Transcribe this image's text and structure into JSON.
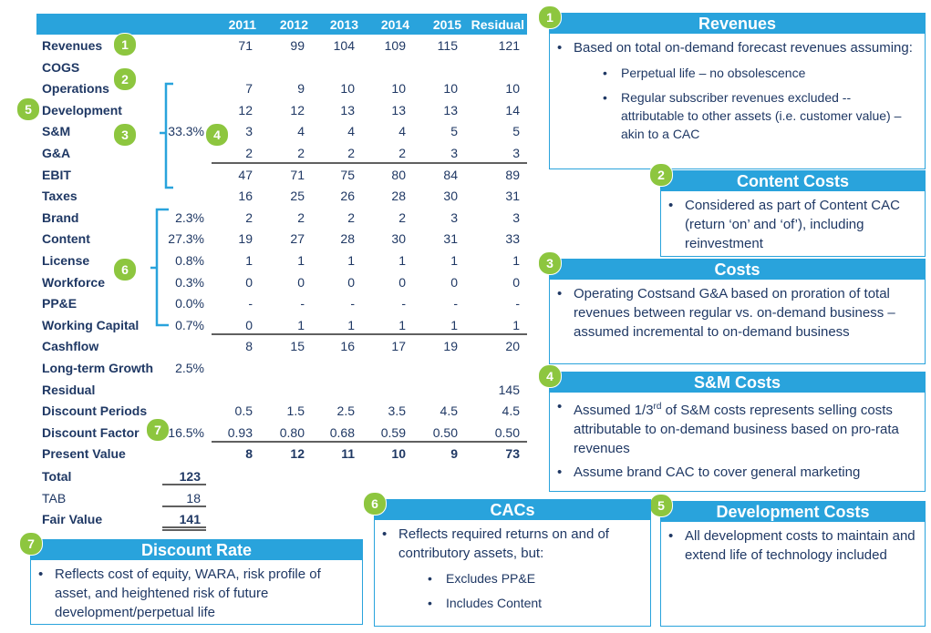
{
  "table": {
    "columns": [
      "2011",
      "2012",
      "2013",
      "2014",
      "2015",
      "Residual"
    ],
    "rows": [
      {
        "label": "Revenues",
        "values": [
          "71",
          "99",
          "104",
          "109",
          "115",
          "121"
        ]
      },
      {
        "label": "COGS"
      },
      {
        "label": "Operations",
        "values": [
          "7",
          "9",
          "10",
          "10",
          "10",
          "10"
        ]
      },
      {
        "label": "Development",
        "values": [
          "12",
          "12",
          "13",
          "13",
          "13",
          "14"
        ]
      },
      {
        "label": "S&M",
        "pct": "33.3%",
        "values": [
          "3",
          "4",
          "4",
          "4",
          "5",
          "5"
        ]
      },
      {
        "label": "G&A",
        "values": [
          "2",
          "2",
          "2",
          "2",
          "3",
          "3"
        ]
      },
      {
        "label": "EBIT",
        "values": [
          "47",
          "71",
          "75",
          "80",
          "84",
          "89"
        ]
      },
      {
        "label": "Taxes",
        "values": [
          "16",
          "25",
          "26",
          "28",
          "30",
          "31"
        ]
      },
      {
        "label": "Brand",
        "pct": "2.3%",
        "values": [
          "2",
          "2",
          "2",
          "2",
          "3",
          "3"
        ]
      },
      {
        "label": "Content",
        "pct": "27.3%",
        "values": [
          "19",
          "27",
          "28",
          "30",
          "31",
          "33"
        ]
      },
      {
        "label": "License",
        "pct": "0.8%",
        "values": [
          "1",
          "1",
          "1",
          "1",
          "1",
          "1"
        ]
      },
      {
        "label": "Workforce",
        "pct": "0.3%",
        "values": [
          "0",
          "0",
          "0",
          "0",
          "0",
          "0"
        ]
      },
      {
        "label": "PP&E",
        "pct": "0.0%",
        "values": [
          "-",
          "-",
          "-",
          "-",
          "-",
          "-"
        ]
      },
      {
        "label": "Working Capital",
        "pct": "0.7%",
        "values": [
          "0",
          "1",
          "1",
          "1",
          "1",
          "1"
        ]
      },
      {
        "label": "Cashflow",
        "values": [
          "8",
          "15",
          "16",
          "17",
          "19",
          "20"
        ]
      },
      {
        "label": "Long-term Growth",
        "pct": "2.5%"
      },
      {
        "label": "Residual",
        "values": [
          null,
          null,
          null,
          null,
          null,
          "145"
        ]
      },
      {
        "label": "Discount Periods",
        "values": [
          "0.5",
          "1.5",
          "2.5",
          "3.5",
          "4.5",
          "4.5"
        ]
      },
      {
        "label": "Discount Factor",
        "pct": "16.5%",
        "values": [
          "0.93",
          "0.80",
          "0.68",
          "0.59",
          "0.50",
          "0.50"
        ]
      },
      {
        "label": "Present Value",
        "values": [
          "8",
          "12",
          "11",
          "10",
          "9",
          "73"
        ]
      }
    ],
    "totals": [
      {
        "label": "Total",
        "value": "123"
      },
      {
        "label": "TAB",
        "value": "18"
      },
      {
        "label": "Fair Value",
        "value": "141"
      }
    ]
  },
  "badges": [
    "1",
    "2",
    "5",
    "3",
    "4",
    "6",
    "7"
  ],
  "callouts": [
    {
      "number": "1",
      "title": "Revenues",
      "bullets": [
        {
          "text": "Based on total on-demand forecast revenues assuming:",
          "sub": [
            "Perpetual life – no obsolescence",
            "Regular subscriber revenues excluded -- attributable to other assets (i.e. customer value) – akin to a CAC"
          ]
        }
      ]
    },
    {
      "number": "2",
      "title": "Content Costs",
      "bullets": [
        {
          "text": "Considered as part of Content CAC (return ‘on’ and ‘of’), including reinvestment"
        }
      ]
    },
    {
      "number": "3",
      "title": "Costs",
      "bullets": [
        {
          "text": "Operating Costsand G&A based on proration of total revenues between regular vs. on-demand business – assumed incremental to on-demand business"
        }
      ]
    },
    {
      "number": "4",
      "title": "S&M Costs",
      "bullets": [
        {
          "text": "Assumed 1/3",
          "sup": "rd",
          "rest": " of S&M costs represents selling costs attributable to on-demand business based on pro-rata revenues"
        },
        {
          "text": "Assume brand CAC to cover general marketing"
        }
      ]
    },
    {
      "number": "5",
      "title": "Development Costs",
      "bullets": [
        {
          "text": "All development costs to maintain and extend life of technology included"
        }
      ]
    },
    {
      "number": "6",
      "title": "CACs",
      "bullets": [
        {
          "text": "Reflects required returns on and of contributory assets, but:",
          "sub": [
            "Excludes PP&E",
            "Includes Content"
          ]
        }
      ]
    },
    {
      "number": "7",
      "title": "Discount Rate",
      "bullets": [
        {
          "text": "Reflects cost of equity, WARA, risk profile of asset, and heightened risk of future development/perpetual life"
        }
      ]
    }
  ]
}
